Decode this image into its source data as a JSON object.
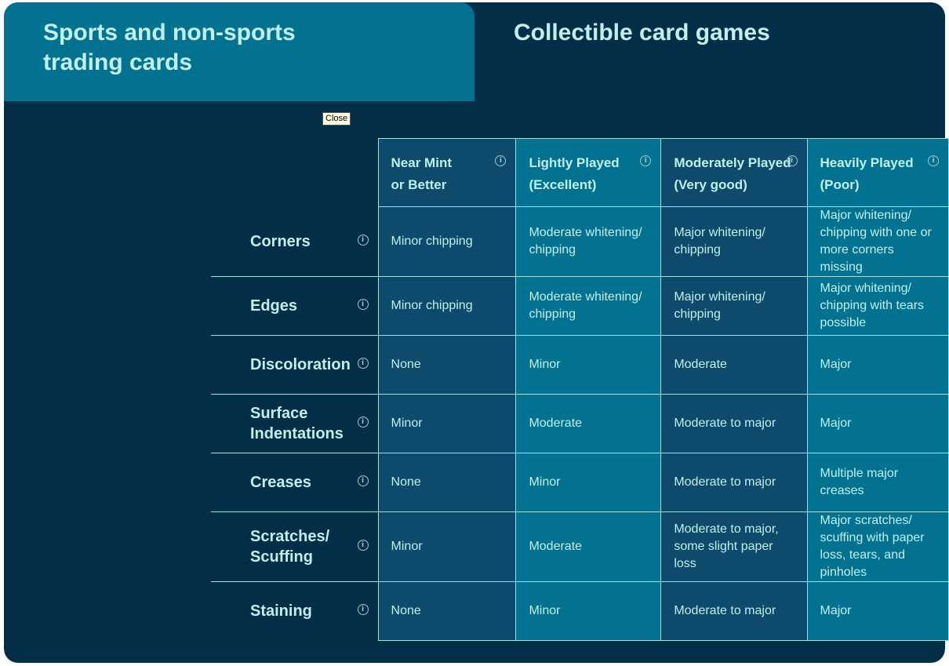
{
  "tabs": [
    {
      "label": "Sports and non-sports trading cards",
      "active": true
    },
    {
      "label": "Collectible card games",
      "active": false
    }
  ],
  "tooltip": "Close",
  "colors": {
    "background": "#022f47",
    "active_tab": "#027290",
    "dark_column": "#0d4a6b",
    "teal_column": "#037290",
    "text": "#bff0ec"
  },
  "columns": [
    {
      "line1": "Near Mint",
      "line2": "or Better",
      "icon": "info-icon"
    },
    {
      "line1": "Lightly Played",
      "line2": "(Excellent)",
      "icon": "info-icon"
    },
    {
      "line1": "Moderately Played",
      "line2": "(Very good)",
      "icon": "info-icon"
    },
    {
      "line1": "Heavily Played",
      "line2": "(Poor)",
      "icon": "info-icon"
    }
  ],
  "rows": [
    {
      "label": "Corners",
      "cells": [
        "Minor chipping",
        "Moderate whitening/ chipping",
        "Major whitening/ chipping",
        "Major whitening/ chipping with one or more corners missing"
      ]
    },
    {
      "label": "Edges",
      "cells": [
        "Minor chipping",
        "Moderate whitening/ chipping",
        "Major whitening/ chipping",
        "Major whitening/ chipping with tears possible"
      ]
    },
    {
      "label": "Discoloration",
      "cells": [
        "None",
        "Minor",
        "Moderate",
        "Major"
      ]
    },
    {
      "label": "Surface Indentations",
      "cells": [
        "Minor",
        "Moderate",
        "Moderate to major",
        "Major"
      ]
    },
    {
      "label": "Creases",
      "cells": [
        "None",
        "Minor",
        "Moderate to major",
        "Multiple major creases"
      ]
    },
    {
      "label": "Scratches/ Scuffing",
      "cells": [
        "Minor",
        "Moderate",
        "Moderate to major, some slight paper loss",
        "Major scratches/ scuffing with paper loss, tears, and pinholes"
      ]
    },
    {
      "label": "Staining",
      "cells": [
        "None",
        "Minor",
        "Moderate to major",
        "Major"
      ]
    }
  ]
}
